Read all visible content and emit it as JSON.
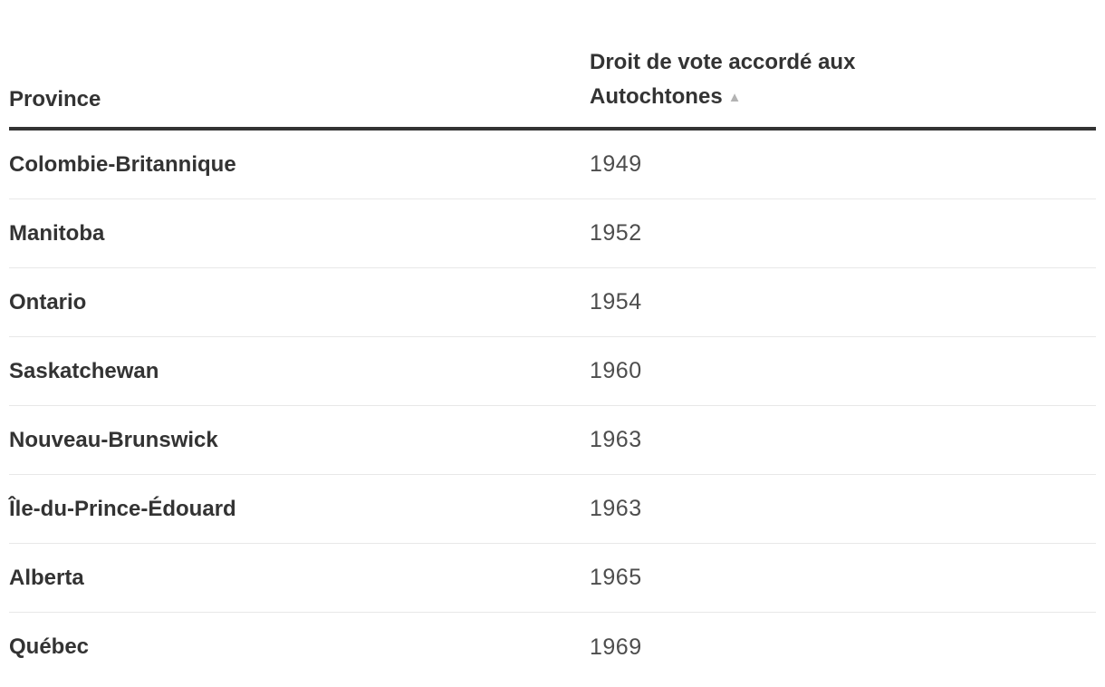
{
  "chart_data": {
    "type": "table",
    "columns": [
      "Province",
      "Droit de vote accordé aux Autochtones"
    ],
    "rows": [
      [
        "Colombie-Britannique",
        1949
      ],
      [
        "Manitoba",
        1952
      ],
      [
        "Ontario",
        1954
      ],
      [
        "Saskatchewan",
        1960
      ],
      [
        "Nouveau-Brunswick",
        1963
      ],
      [
        "Île-du-Prince-Édouard",
        1963
      ],
      [
        "Alberta",
        1965
      ],
      [
        "Québec",
        1969
      ]
    ],
    "sort": {
      "column": "Droit de vote accordé aux Autochtones",
      "direction": "ascending"
    }
  },
  "ui": {
    "sort_icon": "▲",
    "colors": {
      "text_primary": "#333333",
      "text_secondary": "#4d4d4d",
      "header_rule": "#333333",
      "row_divider": "#e8e8e8",
      "sort_icon": "#b3b3b3"
    }
  }
}
